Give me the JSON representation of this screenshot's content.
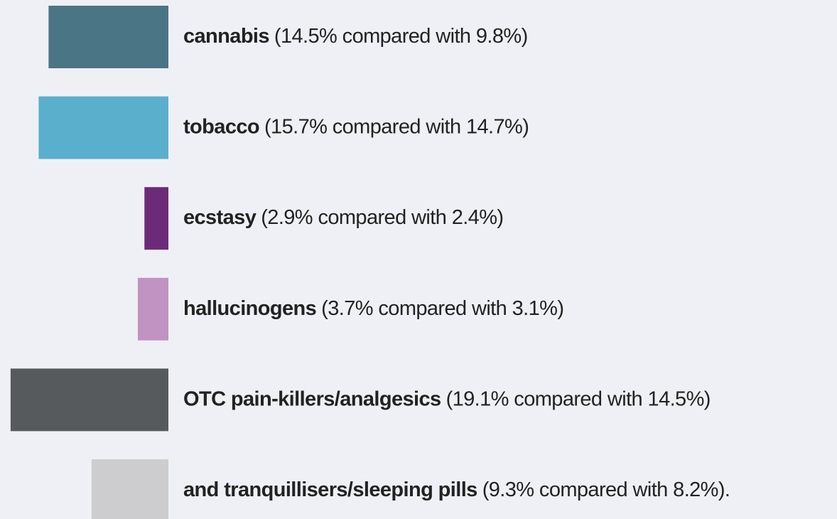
{
  "chart_data": {
    "type": "bar",
    "categories": [
      "cannabis",
      "tobacco",
      "ecstasy",
      "hallucinogens",
      "OTC pain-killers/analgesics",
      "and tranquillisers/sleeping pills"
    ],
    "values": [
      14.5,
      15.7,
      2.9,
      3.7,
      19.1,
      9.3
    ],
    "compared_values": [
      9.8,
      14.7,
      2.4,
      3.1,
      14.5,
      8.2
    ],
    "details": [
      "(14.5% compared with 9.8%)",
      "(15.7% compared with 14.7%)",
      "(2.9% compared with 2.4%)",
      "(3.7% compared with 3.1%)",
      "(19.1% compared with 14.5%)",
      "(9.3% compared with 8.2%)."
    ],
    "colors": [
      "#4a7585",
      "#5aafcd",
      "#6c2b78",
      "#c193c2",
      "#575a5d",
      "#cdcdcf"
    ]
  }
}
